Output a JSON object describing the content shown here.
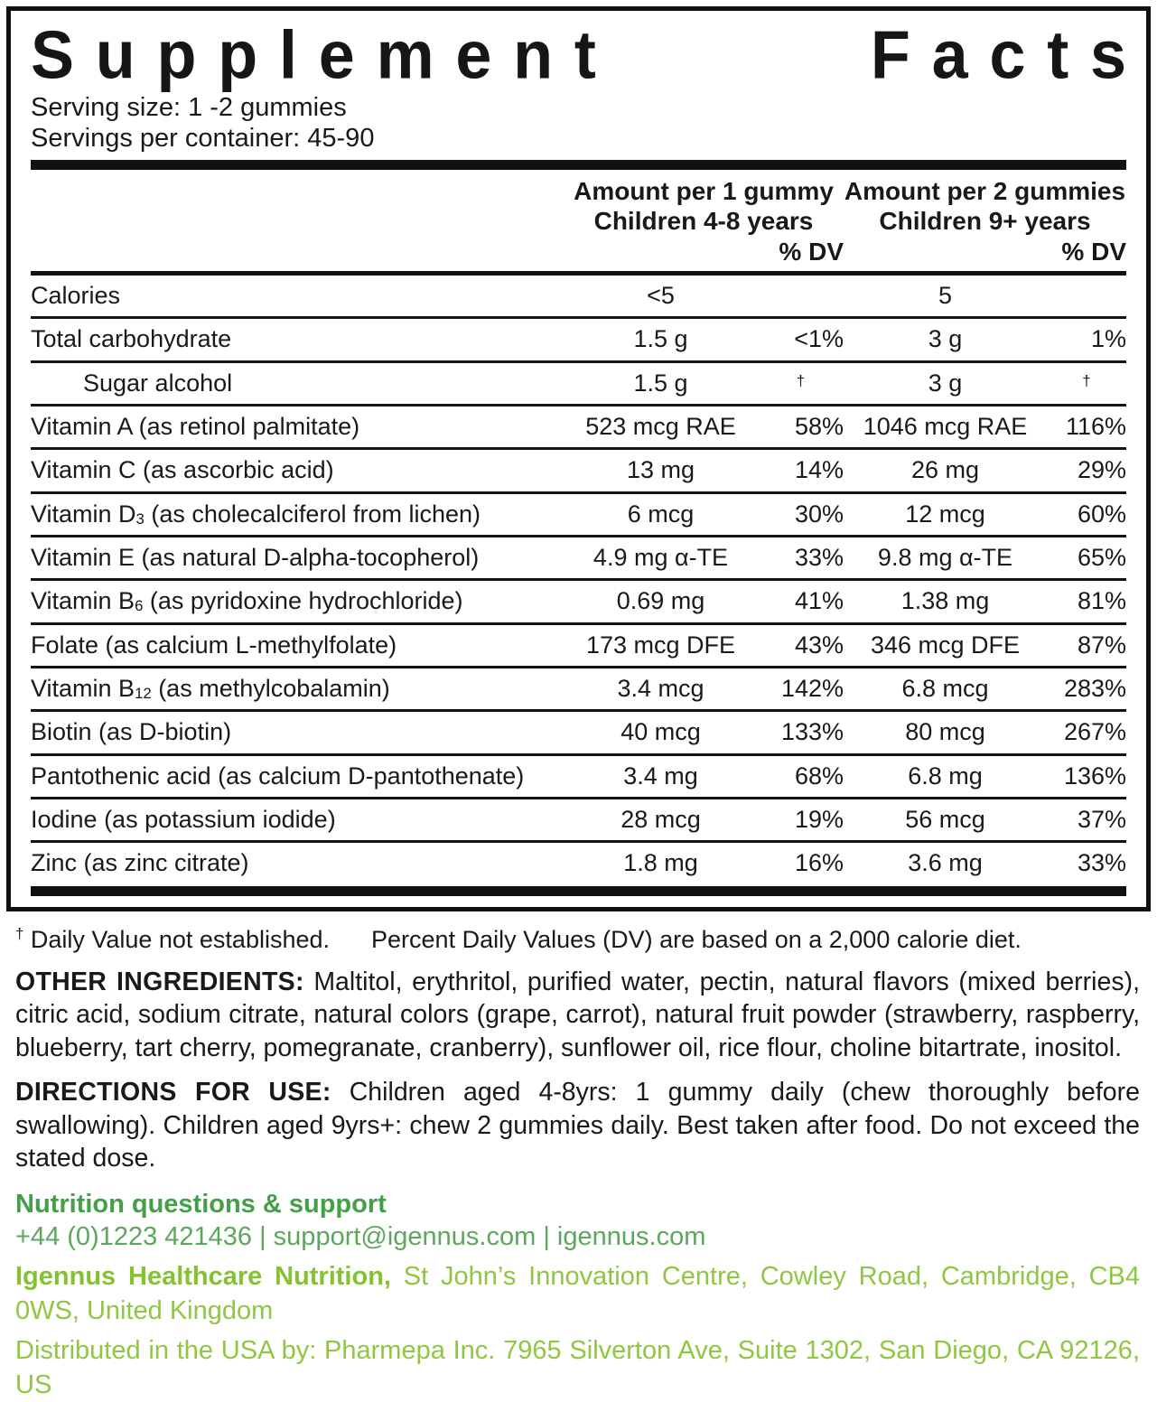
{
  "colors": {
    "ink": "#191919",
    "rule_black": "#111111",
    "green_dark": "#43a047",
    "green_mid": "#5ba75c",
    "green_light": "#8fc742"
  },
  "header": {
    "title_word1": "Supplement",
    "title_word2": "Facts",
    "serving_size": "Serving size: 1 -2 gummies",
    "servings_per_container": "Servings per container: 45-90"
  },
  "table": {
    "group1": {
      "line1": "Amount per 1 gummy",
      "line2": "Children 4-8 years",
      "dv": "% DV"
    },
    "group2": {
      "line1": "Amount per 2 gummies",
      "line2": "Children 9+ years",
      "dv": "% DV"
    },
    "rows": [
      {
        "name_pre": "Calories",
        "name_sub": "",
        "name_post": "",
        "amount1": "<5",
        "dv1": "",
        "amount2": "5",
        "dv2": ""
      },
      {
        "name_pre": "Total carbohydrate",
        "name_sub": "",
        "name_post": "",
        "amount1": "1.5 g",
        "dv1": "<1%",
        "amount2": "3 g",
        "dv2": "1%"
      },
      {
        "name_pre": "Sugar alcohol",
        "name_sub": "",
        "name_post": "",
        "amount1": "1.5 g",
        "dv1": "†",
        "amount2": "3 g",
        "dv2": "†",
        "indent": true,
        "dagger": true
      },
      {
        "name_pre": "Vitamin A (as retinol palmitate)",
        "name_sub": "",
        "name_post": "",
        "amount1": "523 mcg RAE",
        "dv1": "58%",
        "amount2": "1046 mcg RAE",
        "dv2": "116%"
      },
      {
        "name_pre": "Vitamin C (as ascorbic acid)",
        "name_sub": "",
        "name_post": "",
        "amount1": "13 mg",
        "dv1": "14%",
        "amount2": "26 mg",
        "dv2": "29%"
      },
      {
        "name_pre": "Vitamin D",
        "name_sub": "3",
        "name_post": " (as cholecalciferol from lichen)",
        "amount1": "6 mcg",
        "dv1": "30%",
        "amount2": "12 mcg",
        "dv2": "60%"
      },
      {
        "name_pre": "Vitamin E (as natural D-alpha-tocopherol)",
        "name_sub": "",
        "name_post": "",
        "amount1": "4.9 mg α-TE",
        "dv1": "33%",
        "amount2": "9.8 mg α-TE",
        "dv2": "65%"
      },
      {
        "name_pre": "Vitamin B",
        "name_sub": "6",
        "name_post": " (as pyridoxine hydrochloride)",
        "amount1": "0.69 mg",
        "dv1": "41%",
        "amount2": "1.38 mg",
        "dv2": "81%"
      },
      {
        "name_pre": "Folate (as calcium L-methylfolate)",
        "name_sub": "",
        "name_post": "",
        "amount1": "173 mcg DFE",
        "dv1": "43%",
        "amount2": "346 mcg DFE",
        "dv2": "87%"
      },
      {
        "name_pre": "Vitamin B",
        "name_sub": "12",
        "name_post": " (as methylcobalamin)",
        "amount1": "3.4 mcg",
        "dv1": "142%",
        "amount2": "6.8 mcg",
        "dv2": "283%"
      },
      {
        "name_pre": "Biotin (as D-biotin)",
        "name_sub": "",
        "name_post": "",
        "amount1": "40 mcg",
        "dv1": "133%",
        "amount2": "80 mcg",
        "dv2": "267%"
      },
      {
        "name_pre": "Pantothenic acid (as calcium D-pantothenate)",
        "name_sub": "",
        "name_post": "",
        "amount1": "3.4 mg",
        "dv1": "68%",
        "amount2": "6.8 mg",
        "dv2": "136%"
      },
      {
        "name_pre": "Iodine (as potassium iodide)",
        "name_sub": "",
        "name_post": "",
        "amount1": "28 mcg",
        "dv1": "19%",
        "amount2": "56 mcg",
        "dv2": "37%"
      },
      {
        "name_pre": "Zinc (as zinc citrate)",
        "name_sub": "",
        "name_post": "",
        "amount1": "1.8 mg",
        "dv1": "16%",
        "amount2": "3.6 mg",
        "dv2": "33%"
      }
    ]
  },
  "footnote": {
    "dagger": "†",
    "text1": " Daily Value not established.",
    "text2": "Percent Daily Values (DV) are based on a 2,000 calorie diet."
  },
  "other_ingredients": {
    "label": "OTHER INGREDIENTS:",
    "text": " Maltitol, erythritol, purified water, pectin, natural flavors (mixed berries), citric acid, sodium citrate, natural colors (grape, carrot), natural fruit powder (strawberry, raspberry, blueberry, tart cherry, pomegranate, cranberry), sunflower oil, rice flour, choline bitartrate, inositol."
  },
  "directions": {
    "label": "DIRECTIONS FOR USE:",
    "text": " Children aged 4-8yrs: 1 gummy daily (chew thoroughly before swallowing). Children aged 9yrs+: chew 2 gummies daily. Best taken after food. Do not exceed the stated dose."
  },
  "support": {
    "heading": "Nutrition questions & support",
    "contact": "+44 (0)1223 421436 | support@igennus.com | igennus.com",
    "company_bold": "Igennus Healthcare Nutrition,",
    "company_rest": " St John’s Innovation Centre, Cowley Road, Cambridge, CB4 0WS, United Kingdom",
    "distribution": "Distributed in the USA by: Pharmepa Inc. 7965 Silverton Ave, Suite 1302, San Diego, CA 92126, US"
  }
}
